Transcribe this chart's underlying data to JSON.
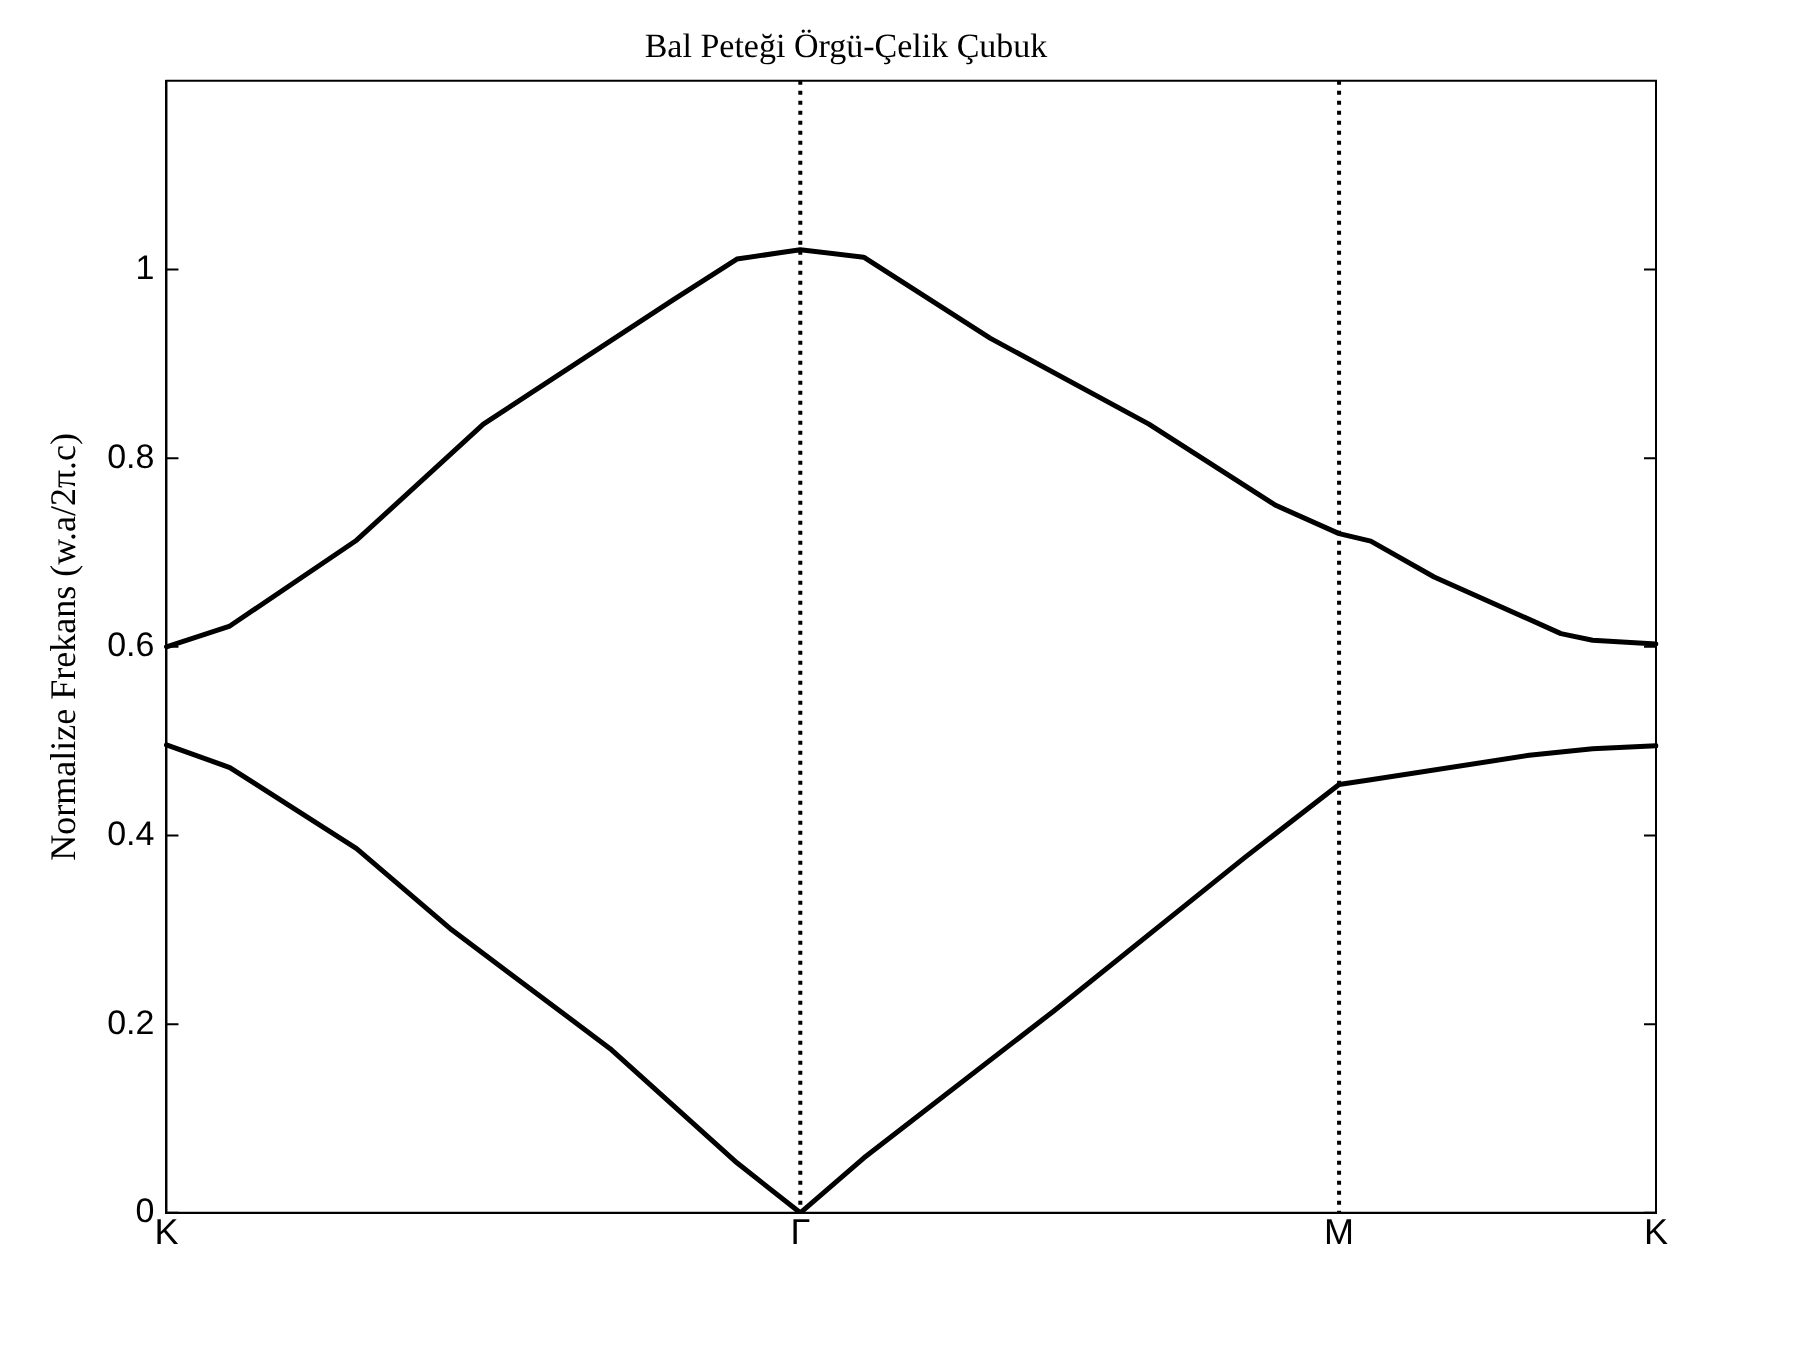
{
  "chart_data": {
    "type": "line",
    "title": "Bal Peteği Örgü-Çelik Çubuk",
    "ylabel": "Normalize Frekans (w.a/2π.c)",
    "categories": [
      "K",
      null,
      null,
      null,
      null,
      null,
      null,
      null,
      null,
      null,
      null,
      null,
      null,
      null,
      null,
      null,
      null,
      null,
      null,
      null,
      "Γ",
      null,
      null,
      null,
      null,
      null,
      null,
      null,
      null,
      null,
      null,
      null,
      null,
      null,
      null,
      null,
      null,
      "M",
      null,
      null,
      null,
      null,
      null,
      null,
      null,
      null,
      null,
      "K"
    ],
    "ylim": [
      0,
      1.2
    ],
    "yticks": [
      0,
      0.2,
      0.4,
      0.6,
      0.8,
      1
    ],
    "grid": false,
    "legend": false,
    "marker": "none",
    "line_style": "solid",
    "series": [
      {
        "color": "#000000",
        "values": [
          0.6,
          null,
          0.622,
          null,
          null,
          null,
          0.713,
          null,
          null,
          null,
          0.836,
          null,
          null,
          null,
          null,
          null,
          0.968,
          null,
          1.011,
          null,
          1.021,
          null,
          1.013,
          null,
          null,
          null,
          0.927,
          null,
          null,
          null,
          null,
          0.836,
          null,
          null,
          null,
          0.75,
          null,
          0.72,
          0.712,
          null,
          0.674,
          null,
          null,
          null,
          0.614,
          0.607,
          null,
          0.603
        ]
      },
      {
        "color": "#000000",
        "values": [
          0.496,
          null,
          0.472,
          null,
          null,
          null,
          0.386,
          null,
          null,
          0.3,
          null,
          null,
          null,
          null,
          0.174,
          null,
          null,
          null,
          0.053,
          null,
          0,
          null,
          0.058,
          null,
          null,
          null,
          null,
          null,
          0.214,
          null,
          null,
          null,
          null,
          null,
          0.376,
          null,
          null,
          0.454,
          0.459,
          null,
          null,
          null,
          null,
          0.485,
          null,
          0.492,
          null,
          0.495
        ]
      }
    ],
    "ref_lines": [
      {
        "axis": "x",
        "value": "Γ",
        "color": "#000000",
        "line_style": "dotted"
      },
      {
        "axis": "x",
        "value": "M",
        "color": "#000000",
        "line_style": "dotted"
      }
    ]
  }
}
